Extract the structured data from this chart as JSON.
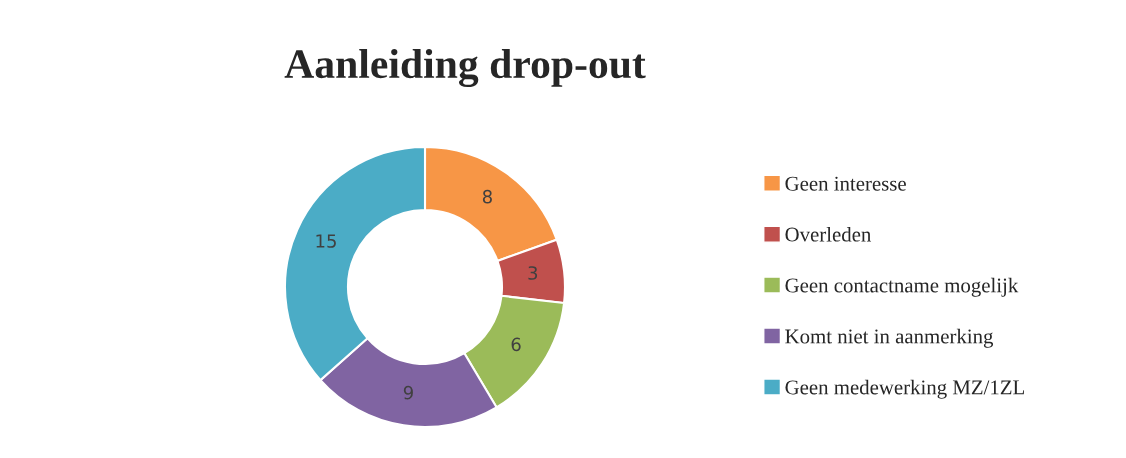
{
  "chart_data": {
    "type": "donut",
    "title": "Aanleiding drop-out",
    "categories": [
      "Geen interesse",
      "Overleden",
      "Geen contactname mogelijk",
      "Komt niet in aanmerking",
      "Geen medewerking MZ/1ZL"
    ],
    "values": [
      8,
      3,
      6,
      9,
      15
    ],
    "colors": [
      "#f79646",
      "#c0504d",
      "#9bbb59",
      "#8064a2",
      "#4bacc6"
    ],
    "data_labels": true,
    "legend": "right"
  }
}
